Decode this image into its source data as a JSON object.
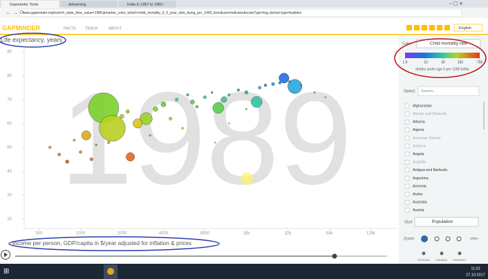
{
  "browser": {
    "tabs": [
      "Gapminder Tools",
      "dslearning",
      "India in 1957 to 1960 -"
    ],
    "url": "www.gapminder.org/tools/#_state_time_value=1989;&marker_color_which=child_mortality_0_5_year_olds_dying_per_1000_born&use=indicator&scaleType=log;;&chart-type=bubbles"
  },
  "header": {
    "logo": "GAPMINDER",
    "nav": [
      "FACTS",
      "TEACH",
      "ABOUT"
    ],
    "language": "English"
  },
  "chart": {
    "type": "scatter",
    "y_label": "Life expectancy, years",
    "x_label": "Income per person, GDP/capita in $/year adjusted for inflation & prices",
    "year": "1989",
    "xscale": "log",
    "xlim": [
      390,
      200000
    ],
    "xticks": [
      500,
      1000,
      2000,
      4000,
      8000,
      {
        "value": 16000,
        "label": "16k"
      },
      {
        "value": 32000,
        "label": "32k"
      },
      {
        "value": 64000,
        "label": "64k"
      },
      {
        "value": 128000,
        "label": "128k"
      }
    ],
    "ylim": [
      16,
      92
    ],
    "yticks": [
      20,
      30,
      40,
      50,
      60,
      70,
      80,
      90
    ],
    "x": [
      1470,
      1700,
      36000,
      3000,
      19000,
      10000,
      30000,
      2600,
      1100,
      2300,
      11000,
      4000,
      3500,
      6500,
      2000,
      16000,
      2200,
      800,
      1200,
      5000,
      25000,
      700,
      20000,
      1000,
      4500,
      8000,
      22000,
      7000,
      600,
      6000,
      14000,
      28000,
      1600,
      900,
      12000,
      33000,
      1300,
      3200,
      9000,
      5500,
      40000,
      50000,
      16000,
      60000,
      12000,
      9500
    ],
    "y": [
      66.5,
      58,
      75.5,
      62,
      69,
      66.5,
      79,
      60,
      55,
      46,
      70,
      68,
      66,
      69,
      63,
      73,
      65,
      44,
      45,
      70,
      76.5,
      47,
      75,
      48,
      62,
      71,
      76,
      67,
      50,
      72,
      74,
      77,
      52,
      53,
      72,
      77.5,
      51,
      55,
      73,
      58,
      76,
      73,
      66,
      71,
      60,
      52
    ],
    "sizes": [
      1130,
      840,
      247,
      180,
      148,
      147,
      123,
      108,
      107,
      90,
      40,
      30,
      25,
      20,
      20,
      15,
      15,
      15,
      12,
      12,
      12,
      10,
      10,
      9,
      10,
      10,
      9,
      9,
      8,
      8,
      8,
      8,
      7,
      6,
      6,
      6,
      5,
      5,
      5,
      4,
      4,
      3,
      3,
      2,
      2,
      2
    ],
    "colors": [
      "#7bd12a",
      "#b9cf22",
      "#27a9dc",
      "#9bd12a",
      "#2fc6a8",
      "#5ad04a",
      "#1f6fe0",
      "#d7c61e",
      "#e0a81c",
      "#e8641c",
      "#3cc996",
      "#6cd13a",
      "#8cd22c",
      "#55cf5a",
      "#b8cf22",
      "#2db9c0",
      "#9cd12a",
      "#e85a1c",
      "#e8701c",
      "#4fd06a",
      "#2398dc",
      "#e87a1c",
      "#27a9d8",
      "#e8801c",
      "#bccf22",
      "#41c98a",
      "#24a0dc",
      "#7ad22c",
      "#e3a01e",
      "#3ccb8c",
      "#2ab8c4",
      "#2090de",
      "#e2a01e",
      "#dcb020",
      "#30bfb4",
      "#1f86e0",
      "#e2961e",
      "#e0b01e",
      "#33c3a6",
      "#d2c820",
      "#249cdc",
      "#2ab4c4",
      "#6fd13a",
      "#31c0ac",
      "#b0cf22",
      "#e0a81c"
    ]
  },
  "panel": {
    "color_label": "Color",
    "color_indicator": "Child mortality rate",
    "color_ticks": [
      1.9,
      10,
      40,
      160,
      756
    ],
    "color_caption": "deaths under age 5 per 1000 births",
    "select_label": "Select",
    "search_placeholder": "Search...",
    "countries": [
      "Afghanistan",
      "Akrotiri and Dhekelia",
      "Albania",
      "Algeria",
      "American Samoa",
      "Andorra",
      "Angola",
      "Anguilla",
      "Antigua and Barbuda",
      "Argentina",
      "Armenia",
      "Aruba",
      "Australia",
      "Austria"
    ],
    "size_label": "Size",
    "size_indicator": "Population",
    "zoom_label": "Zoom",
    "zoom_value": "100%",
    "buttons": [
      "OPTIONS",
      "EXPAND",
      "PRESENT"
    ]
  },
  "taskbar": {
    "time": "11:02",
    "date": "27.10.2017"
  }
}
